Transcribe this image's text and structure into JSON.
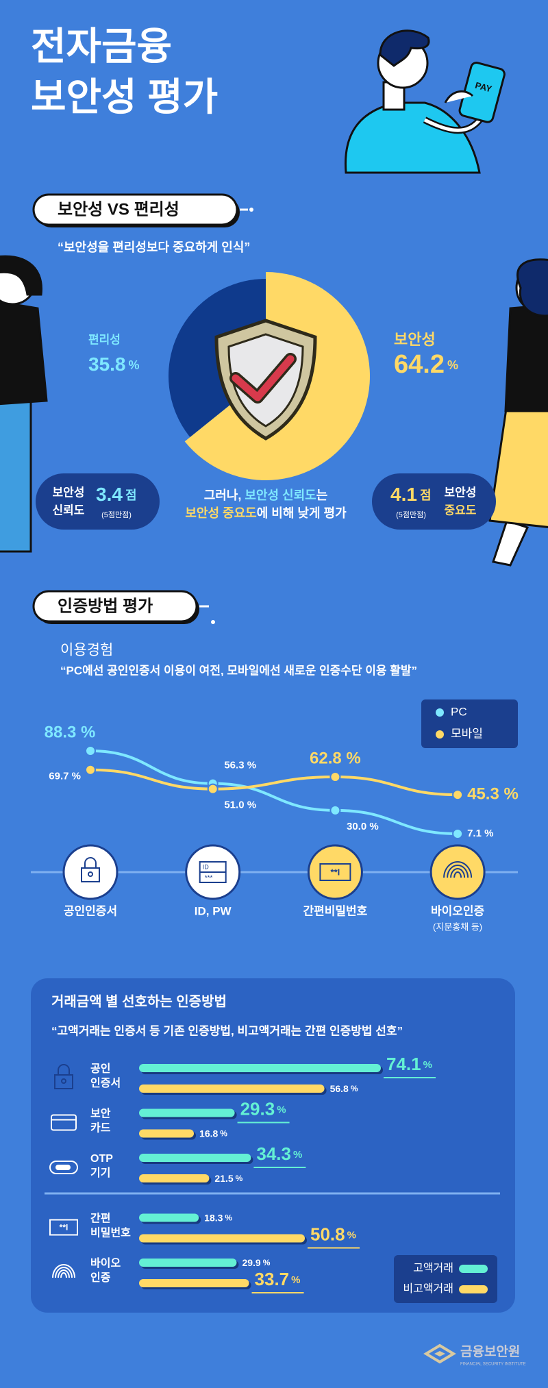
{
  "header": {
    "title": [
      "전자금융",
      "보안성 평가"
    ],
    "pay": "PAY"
  },
  "section1": {
    "heading": "보안성 VS 편리성",
    "quote": "“보안성을 편리성보다 중요하게 인식”",
    "note": [
      [
        "그러나, ",
        "보안성 신뢰도",
        "는"
      ],
      [
        "보안성 중요도",
        "에 비해 낮게 평가"
      ]
    ],
    "scores": [
      {
        "label": [
          "보안성",
          "신뢰도"
        ],
        "value": 3.4,
        "unit": "점",
        "scale": "(5점만점)"
      },
      {
        "label": [
          "보안성",
          "중요도"
        ],
        "value": 4.1,
        "unit": "점",
        "scale": "(5점만점)"
      }
    ]
  },
  "section2": {
    "heading": "인증방법 평가"
  },
  "icons": {
    "id": [
      "ID",
      "***"
    ],
    "pin": "**I"
  },
  "footer": {
    "logo": "금융보안원",
    "logo_sub": "FINANCIAL SECURITY INSTITUTE"
  },
  "chart_data": [
    {
      "type": "pie",
      "categories": [
        "편리성",
        "보안성"
      ],
      "values": [
        35.8,
        64.2
      ],
      "colors": [
        "#0f3a8c",
        "#ffd966"
      ],
      "unit": "%"
    },
    {
      "type": "line",
      "title": "이용경험",
      "subtitle": "“PC에선 공인인증서 이용이 여전, 모바일에선 새로운 인증수단 이용 활발”",
      "categories": [
        "공인인증서",
        "ID, PW",
        "간편비밀번호",
        "바이오인증"
      ],
      "category_notes": [
        null,
        null,
        null,
        "(지문홍채 등)"
      ],
      "series": [
        {
          "name": "PC",
          "color": "#7fe8ff",
          "values": [
            88.3,
            56.3,
            30,
            7.1
          ],
          "value_labels": [
            "88.3 %",
            "56.3 %",
            "30.0 %",
            "7.1 %"
          ]
        },
        {
          "name": "모바일",
          "color": "#ffd966",
          "values": [
            69.7,
            51,
            62.8,
            45.3
          ],
          "value_labels": [
            "69.7 %",
            "51.0 %",
            "62.8 %",
            "45.3 %"
          ]
        }
      ]
    },
    {
      "type": "bar",
      "orientation": "horizontal",
      "title": "거래금액 별 선호하는 인증방법",
      "subtitle": "“고액거래는 인증서 등 기존 인증방법, 비고액거래는 간편 인증방법 선호”",
      "categories": [
        [
          "공인",
          "인증서"
        ],
        [
          "보안",
          "카드"
        ],
        [
          "OTP",
          "기기"
        ],
        [
          "간편",
          "비밀번호"
        ],
        [
          "바이오",
          "인증"
        ]
      ],
      "unit": "%",
      "series": [
        {
          "name": "고액거래",
          "color": "#64f0d4",
          "values": [
            74.1,
            29.3,
            34.3,
            18.3,
            29.9
          ]
        },
        {
          "name": "비고액거래",
          "color": "#ffd966",
          "values": [
            56.8,
            16.8,
            21.5,
            50.8,
            33.7
          ]
        }
      ]
    }
  ]
}
